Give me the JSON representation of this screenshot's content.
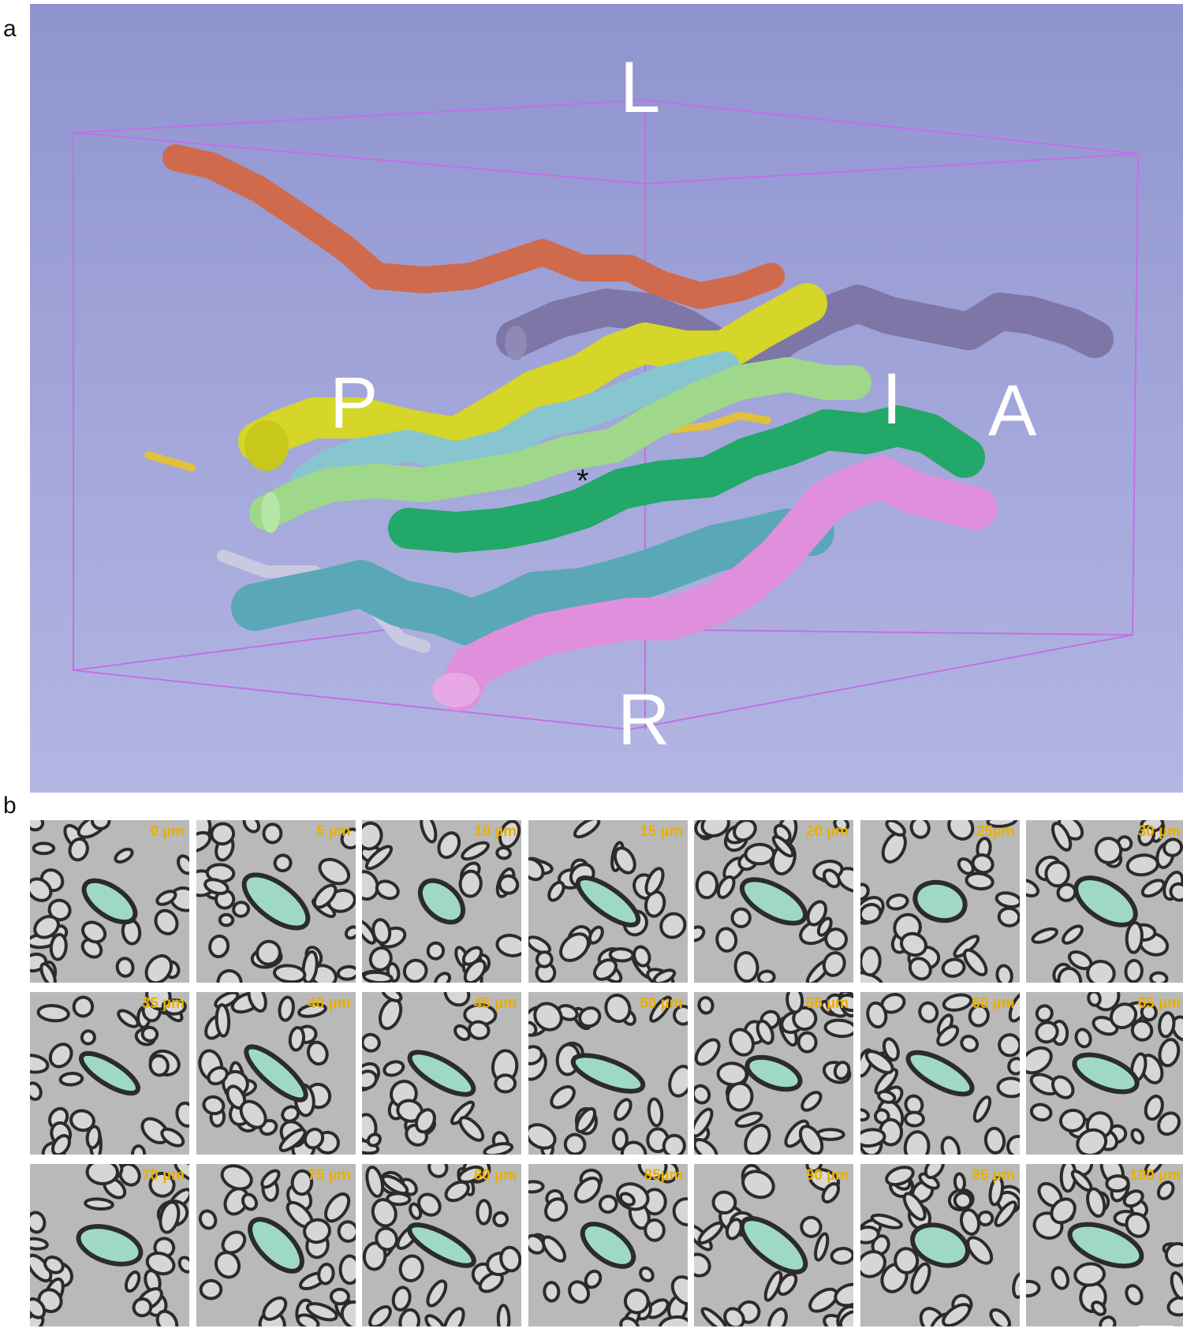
{
  "figure": {
    "panel_a_label": "a",
    "panel_b_label": "b"
  },
  "panel_a": {
    "orientation": {
      "left": "L",
      "right": "R",
      "posterior": "P",
      "anterior": "A",
      "inferior": "I"
    },
    "marker": "*",
    "colors": {
      "background_top": "#8f94cf",
      "bounding_box": "#c46fe6",
      "fiber_orange": "#d06a4c",
      "fiber_purple": "#7d76a6",
      "fiber_yellow": "#d5d52a",
      "fiber_gold": "#e2c03e",
      "fiber_lightblue": "#88c6cf",
      "fiber_lightgreen": "#9fd88a",
      "fiber_darkgreen": "#22a868",
      "fiber_pink": "#df8fdc",
      "fiber_teal": "#5aa7b7",
      "fiber_lavender": "#c9c9e0"
    }
  },
  "panel_b": {
    "slices": [
      "0 µm",
      "5 µm",
      "10 µm",
      "15 µm",
      "20 µm",
      "25µm",
      "30 µm",
      "35 µm",
      "40 µm",
      "45 µm",
      "50 µm",
      "55 µm",
      "60 µm",
      "65 µm",
      "70 µm",
      "75 µm",
      "80 µm",
      "85µm",
      "90 µm",
      "95 µm",
      "100 µm"
    ],
    "colors": {
      "label": "#e8b000",
      "highlight_axon": "#9fd9c4",
      "tissue": "#b9b9b9",
      "myelin": "#2b2b2b"
    }
  }
}
